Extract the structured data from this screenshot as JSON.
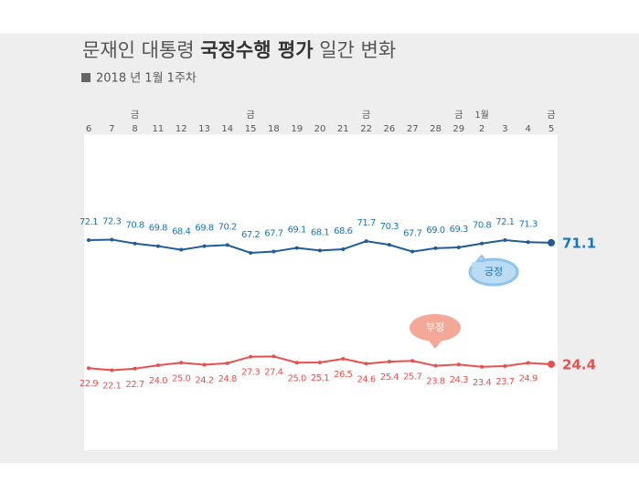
{
  "chart_data": {
    "type": "line",
    "title_parts": [
      "문재인 대통령",
      "국정수행 평가",
      "일간 변화"
    ],
    "subtitle": "2018 년 1월 1주차",
    "categories": [
      "6",
      "7",
      "8",
      "11",
      "12",
      "13",
      "14",
      "15",
      "18",
      "19",
      "20",
      "21",
      "22",
      "26",
      "27",
      "28",
      "29",
      "2",
      "3",
      "4",
      "5"
    ],
    "weekday_labels": [
      null,
      null,
      "금",
      null,
      null,
      null,
      null,
      "금",
      null,
      null,
      null,
      null,
      "금",
      null,
      null,
      null,
      "금",
      "1월",
      null,
      null,
      "금"
    ],
    "series": [
      {
        "name": "긍정",
        "color": "#1f5c99",
        "label_color": "#1a76b8",
        "values": [
          72.1,
          72.3,
          70.8,
          69.8,
          68.4,
          69.8,
          70.2,
          67.2,
          67.7,
          69.1,
          68.1,
          68.6,
          71.7,
          70.3,
          67.7,
          69.0,
          69.3,
          70.8,
          72.1,
          71.3,
          71.1
        ],
        "value_labels": [
          "72.1",
          "72.3",
          "70.8",
          "69.8",
          "68.4",
          "69.8",
          "70.2",
          "67.2",
          "67.7",
          "69.1",
          "68.1",
          "68.6",
          "71.7",
          "70.3",
          "67.7",
          "69.0",
          "69.3",
          "70.8",
          "72.1",
          "71.3",
          "71.1"
        ]
      },
      {
        "name": "부정",
        "color": "#e8504f",
        "label_color": "#e8504f",
        "values": [
          22.9,
          22.1,
          22.7,
          24.0,
          25.0,
          24.2,
          24.8,
          27.3,
          27.4,
          25.0,
          25.1,
          26.5,
          24.6,
          25.4,
          25.7,
          23.8,
          24.3,
          23.4,
          23.7,
          24.9,
          24.4
        ],
        "value_labels": [
          "22.9",
          "22.1",
          "22.7",
          "24.0",
          "25.0",
          "24.2",
          "24.8",
          "27.3",
          "27.4",
          "25.0",
          "25.1",
          "26.5",
          "24.6",
          "25.4",
          "25.7",
          "23.8",
          "24.3",
          "23.4",
          "23.7",
          "24.9",
          "24.4"
        ]
      }
    ]
  }
}
